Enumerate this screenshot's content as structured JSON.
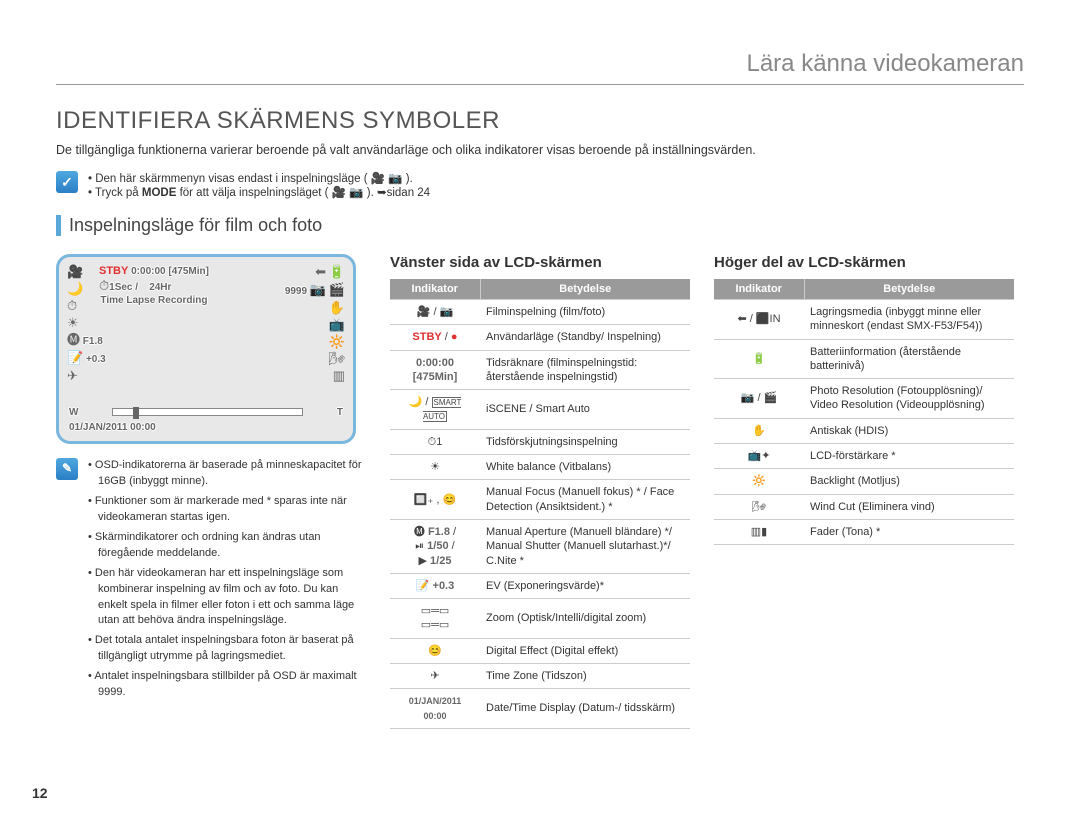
{
  "page_number": "12",
  "chapter": "Lära känna videokameran",
  "title": "IDENTIFIERA SKÄRMENS SYMBOLER",
  "intro": "De tillgängliga funktionerna varierar beroende på valt användarläge och olika indikatorer visas beroende på inställningsvärden.",
  "topnote": {
    "line1": "Den här skärmmenyn visas endast i inspelningsläge ( 🎥 📷 ).",
    "line2_a": "Tryck på ",
    "line2_b": "MODE",
    "line2_c": " för att välja inspelningsläget ( 🎥 📷 ). ➥sidan 24"
  },
  "subsection": "Inspelningsläge för film och foto",
  "lcd": {
    "stby": "STBY",
    "time": "0:00:00",
    "remain": "[475Min]",
    "sec": "1Sec /",
    "hr": "24Hr",
    "count": "9999",
    "tlr": "Time Lapse Recording",
    "f": "F1.8",
    "ev": "+0.3",
    "date": "01/JAN/2011 00:00",
    "w": "W",
    "t": "T"
  },
  "notes2": [
    "OSD-indikatorerna är baserade på minneskapacitet för 16GB (inbyggt minne).",
    "Funktioner som är markerade med * sparas inte när videokameran startas igen.",
    "Skärmindikatorer och ordning kan ändras utan föregående meddelande.",
    "Den här videokameran har ett inspelningsläge som kombinerar inspelning av film och av foto. Du kan enkelt spela in filmer eller foton i ett och samma läge utan att behöva ändra inspelningsläge.",
    "Det totala antalet inspelningsbara foton är baserat på tillgängligt utrymme på lagringsmediet.",
    "Antalet inspelningsbara stillbilder på OSD är maximalt 9999."
  ],
  "left_table": {
    "title": "Vänster sida av LCD-skärmen",
    "head_ind": "Indikator",
    "head_mean": "Betydelse",
    "rows": [
      {
        "ind": "🎥 / 📷",
        "mean": "Filminspelning (film/foto)"
      },
      {
        "ind": "<span class='stbytxt'>STBY</span> / <span class='rec-dot'>●</span>",
        "mean": "Användarläge (Standby/ Inspelning)"
      },
      {
        "ind": "<span class='outl'>0:00:00 [475Min]</span>",
        "mean": "Tidsräknare (filminspelningstid: återstående inspelningstid)"
      },
      {
        "ind": "🌙 / <span style='font-size:8px;border:1px solid #666;padding:0 1px;'>SMART<br>AUTO</span>",
        "mean": "iSCENE / Smart Auto"
      },
      {
        "ind": "⏱1",
        "mean": "Tidsförskjutningsinspelning"
      },
      {
        "ind": "☀",
        "mean": "White balance (Vitbalans)"
      },
      {
        "ind": "🔲₊ , 😊",
        "mean": "Manual Focus (Manuell fokus) * / Face Detection (Ansiktsident.) *"
      },
      {
        "ind": "🅜 <span class='outl'>F1.8</span> /<br>⏯ <span class='outl'>1/50</span> /<br>▶ <span class='outl'>1/25</span>",
        "mean": "Manual Aperture (Manuell bländare) */ Manual Shutter (Manuell slutarhast.)*/ C.Nite *"
      },
      {
        "ind": "📝 <span class='outl'>+0.3</span>",
        "mean": "EV (Exponeringsvärde)*"
      },
      {
        "ind": "▭═▭<br>▭═▭",
        "mean": "Zoom (Optisk/Intelli/digital zoom)"
      },
      {
        "ind": "😊",
        "mean": "Digital Effect (Digital effekt)"
      },
      {
        "ind": "✈",
        "mean": "Time Zone (Tidszon)"
      },
      {
        "ind": "<span class='outl' style='font-size:9px;'>01/JAN/2011 00:00</span>",
        "mean": "Date/Time Display (Datum-/ tidsskärm)"
      }
    ]
  },
  "right_table": {
    "title": "Höger del av LCD-skärmen",
    "head_ind": "Indikator",
    "head_mean": "Betydelse",
    "rows": [
      {
        "ind": "⬅ / ⬛IN",
        "mean": "Lagringsmedia (inbyggt minne eller minneskort (endast SMX-F53/F54))"
      },
      {
        "ind": "🔋",
        "mean": "Batteriinformation (återstående batterinivå)"
      },
      {
        "ind": "📷 / 🎬",
        "mean": "Photo Resolution (Fotoupplösning)/ Video Resolution (Videoupplösning)"
      },
      {
        "ind": "✋",
        "mean": "Antiskak (HDIS)"
      },
      {
        "ind": "📺✦",
        "mean": "LCD-förstärkare *"
      },
      {
        "ind": "🔆",
        "mean": "Backlight (Motljus)"
      },
      {
        "ind": "🌬",
        "mean": "Wind Cut (Eliminera vind)"
      },
      {
        "ind": "▥▮",
        "mean": "Fader (Tona) *"
      }
    ]
  }
}
